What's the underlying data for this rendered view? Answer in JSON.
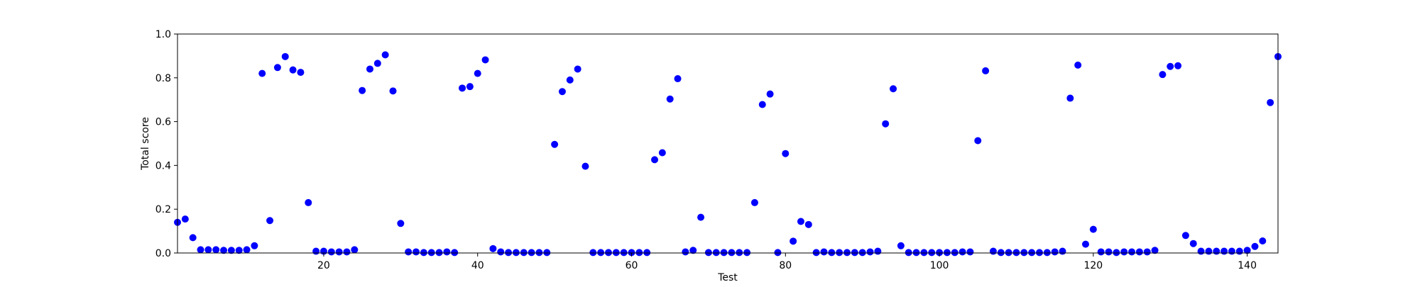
{
  "chart_data": {
    "type": "scatter",
    "title": "",
    "xlabel": "Test",
    "ylabel": "Total score",
    "xlim": [
      1,
      144
    ],
    "ylim": [
      0.0,
      1.0
    ],
    "xticks": [
      20,
      40,
      60,
      80,
      100,
      120,
      140
    ],
    "xtick_labels": [
      "20",
      "40",
      "60",
      "80",
      "100",
      "120",
      "140"
    ],
    "yticks": [
      0.0,
      0.2,
      0.4,
      0.6,
      0.8,
      1.0
    ],
    "ytick_labels": [
      "0.0",
      "0.2",
      "0.4",
      "0.6",
      "0.8",
      "1.0"
    ],
    "grid": false,
    "marker_color": "#0000ff",
    "series": [
      {
        "x": [
          1,
          2,
          3,
          4,
          5,
          6,
          7,
          8,
          9,
          10,
          11,
          12,
          13,
          14,
          15,
          16,
          17,
          18,
          19,
          20,
          21,
          22,
          23,
          24,
          25,
          26,
          27,
          28,
          29,
          30,
          31,
          32,
          33,
          34,
          35,
          36,
          37,
          38,
          39,
          40,
          41,
          42,
          43,
          44,
          45,
          46,
          47,
          48,
          49,
          50,
          51,
          52,
          53,
          54,
          55,
          56,
          57,
          58,
          59,
          60,
          61,
          62,
          63,
          64,
          65,
          66,
          67,
          68,
          69,
          70,
          71,
          72,
          73,
          74,
          75,
          76,
          77,
          78,
          79,
          80,
          81,
          82,
          83,
          84,
          85,
          86,
          87,
          88,
          89,
          90,
          91,
          92,
          93,
          94,
          95,
          96,
          97,
          98,
          99,
          100,
          101,
          102,
          103,
          104,
          105,
          106,
          107,
          108,
          109,
          110,
          111,
          112,
          113,
          114,
          115,
          116,
          117,
          118,
          119,
          120,
          121,
          122,
          123,
          124,
          125,
          126,
          127,
          128,
          129,
          130,
          131,
          132,
          133,
          134,
          135,
          136,
          137,
          138,
          139,
          140,
          141,
          142,
          143,
          144
        ],
        "y": [
          0.14,
          0.155,
          0.07,
          0.015,
          0.015,
          0.015,
          0.012,
          0.012,
          0.012,
          0.015,
          0.033,
          0.82,
          0.148,
          0.847,
          0.897,
          0.836,
          0.825,
          0.23,
          0.008,
          0.008,
          0.005,
          0.005,
          0.005,
          0.015,
          0.742,
          0.84,
          0.866,
          0.905,
          0.74,
          0.135,
          0.005,
          0.005,
          0.002,
          0.002,
          0.002,
          0.005,
          0.002,
          0.753,
          0.76,
          0.82,
          0.882,
          0.02,
          0.005,
          0.002,
          0.002,
          0.002,
          0.002,
          0.002,
          0.002,
          0.496,
          0.737,
          0.79,
          0.84,
          0.396,
          0.002,
          0.002,
          0.002,
          0.002,
          0.002,
          0.002,
          0.002,
          0.002,
          0.426,
          0.458,
          0.703,
          0.796,
          0.005,
          0.012,
          0.163,
          0.002,
          0.002,
          0.002,
          0.002,
          0.002,
          0.002,
          0.23,
          0.678,
          0.726,
          0.002,
          0.454,
          0.054,
          0.144,
          0.13,
          0.002,
          0.005,
          0.002,
          0.002,
          0.002,
          0.002,
          0.002,
          0.005,
          0.008,
          0.59,
          0.75,
          0.033,
          0.002,
          0.002,
          0.002,
          0.002,
          0.002,
          0.002,
          0.002,
          0.005,
          0.005,
          0.513,
          0.832,
          0.008,
          0.002,
          0.002,
          0.002,
          0.002,
          0.002,
          0.002,
          0.002,
          0.005,
          0.008,
          0.707,
          0.858,
          0.04,
          0.108,
          0.005,
          0.005,
          0.002,
          0.005,
          0.005,
          0.005,
          0.005,
          0.012,
          0.815,
          0.852,
          0.855,
          0.08,
          0.043,
          0.008,
          0.008,
          0.008,
          0.008,
          0.008,
          0.008,
          0.012,
          0.03,
          0.055,
          0.687,
          0.897
        ]
      }
    ]
  }
}
